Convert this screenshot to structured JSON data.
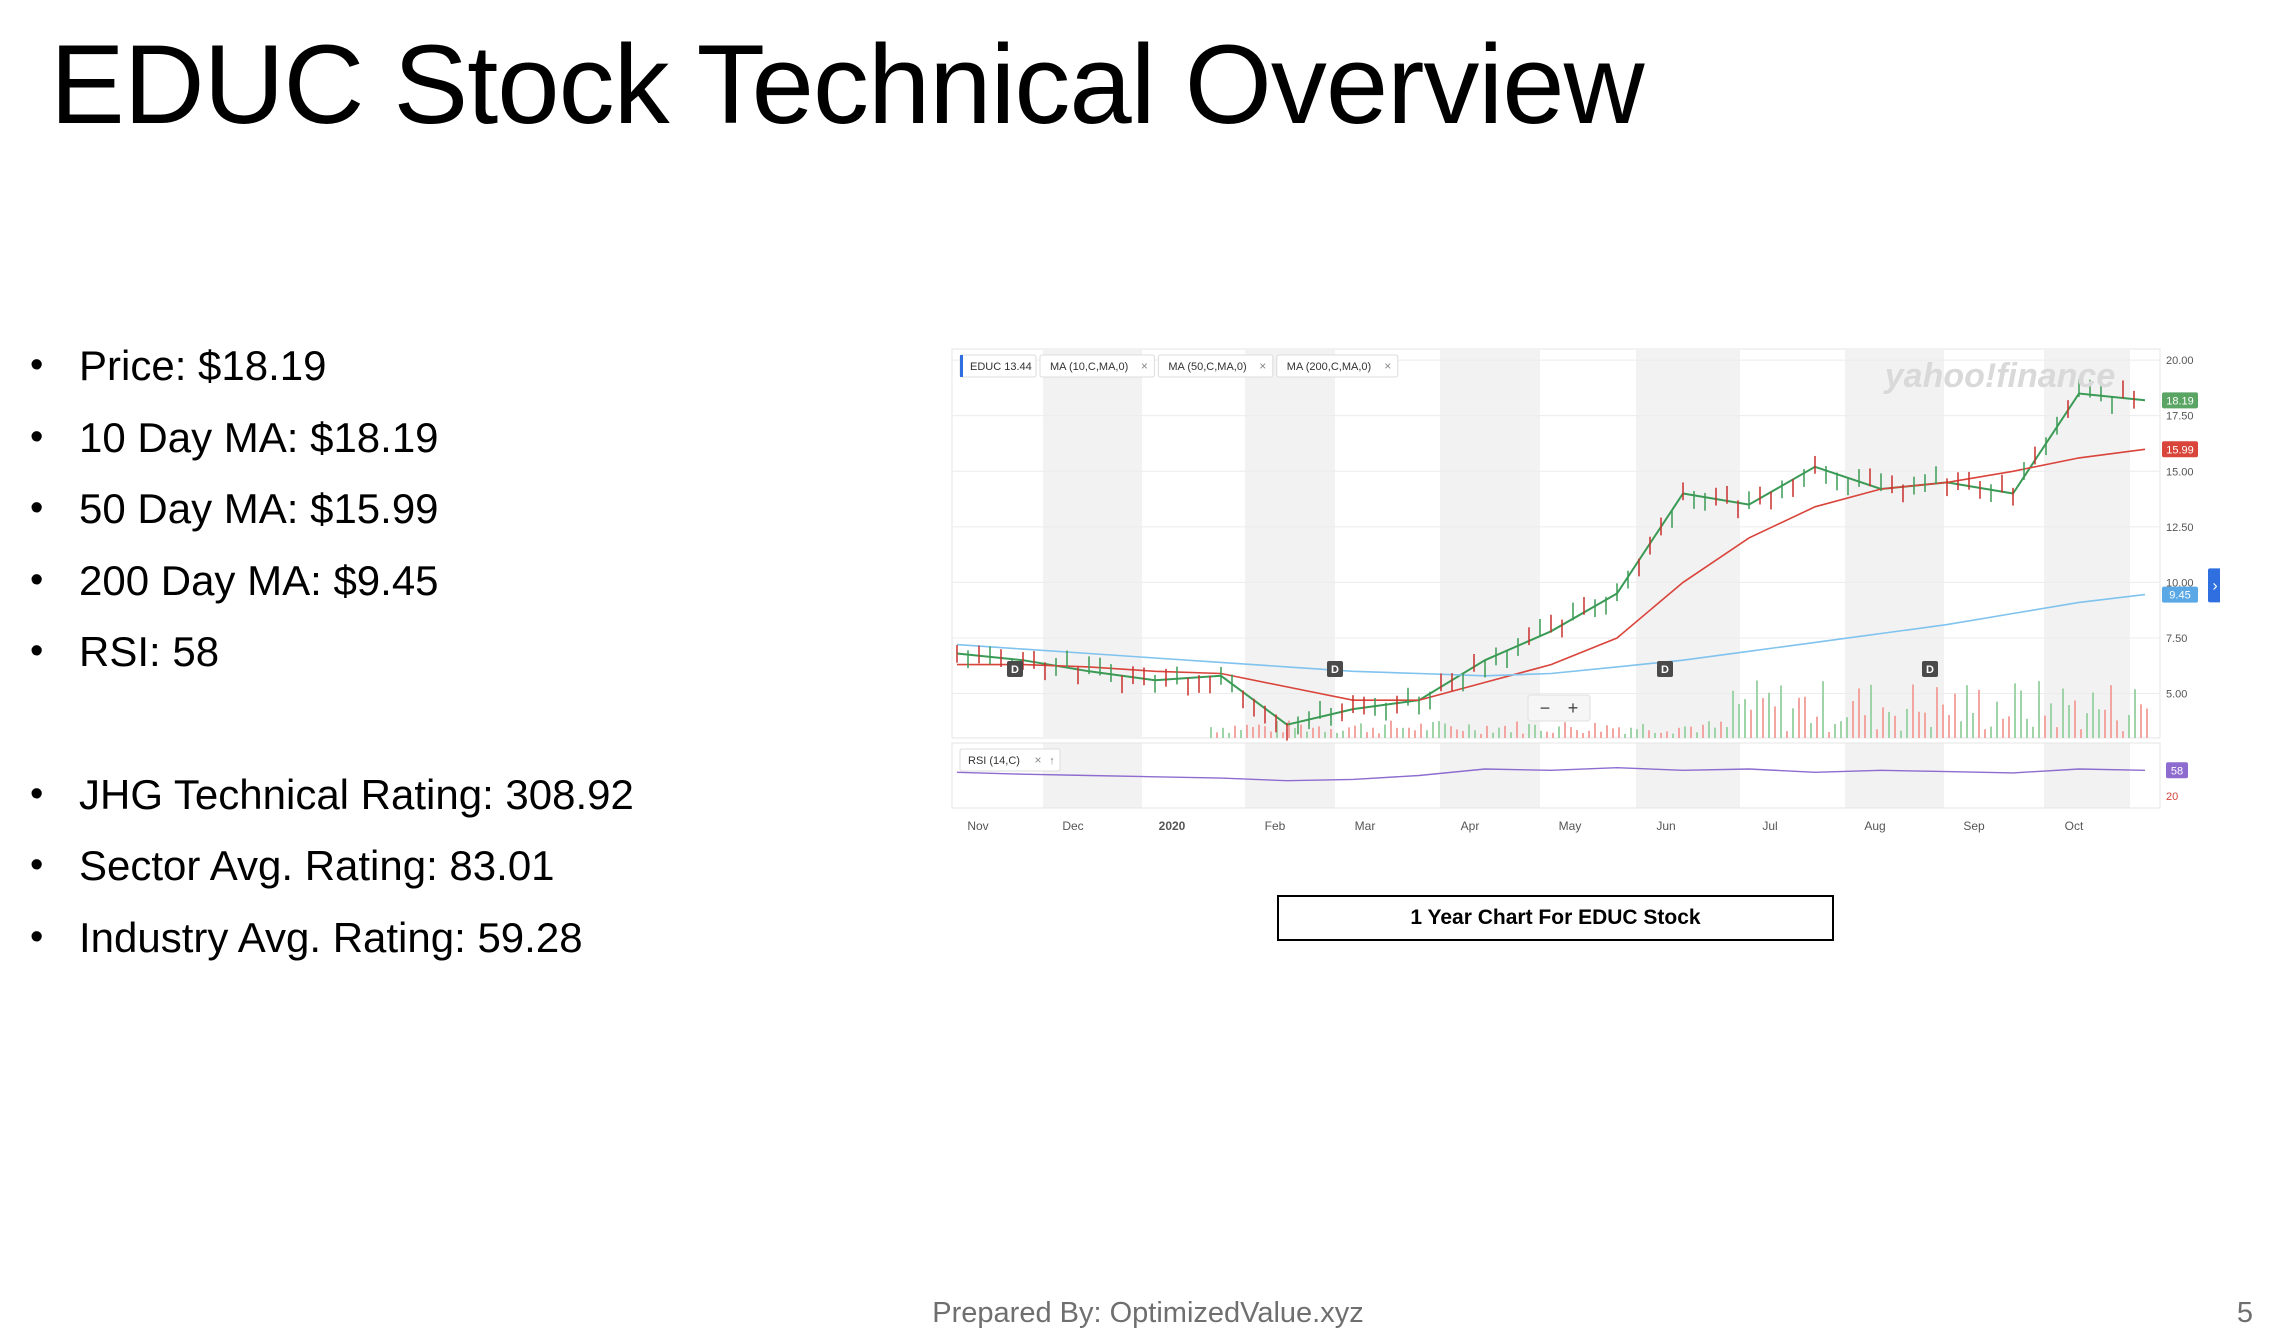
{
  "slide": {
    "title": "EDUC Stock Technical Overview",
    "bullets_group1": [
      "Price: $18.19",
      "10 Day MA: $18.19",
      "50 Day MA: $15.99",
      "200 Day MA: $9.45",
      "RSI: 58"
    ],
    "bullets_group2": [
      "JHG Technical Rating: 308.92",
      "Sector Avg. Rating: 83.01",
      "Industry Avg. Rating: 59.28"
    ],
    "chart_caption": "1 Year Chart For EDUC Stock",
    "footer": "Prepared By: OptimizedValue.xyz",
    "page_number": "5"
  },
  "chart_data": {
    "type": "line",
    "source_watermark": "yahoo!finance",
    "legend_chips": [
      "EDUC 13.44",
      "MA (10,C,MA,0)",
      "MA (50,C,MA,0)",
      "MA (200,C,MA,0)"
    ],
    "rsi_chip": "RSI (14,C)",
    "ylim": [
      3,
      20.5
    ],
    "yticks": [
      "20.00",
      "17.50",
      "15.00",
      "12.50",
      "10.00",
      "7.50",
      "5.00"
    ],
    "rsi_ticks": [
      "20"
    ],
    "xlabels": [
      "Nov",
      "Dec",
      "2020",
      "Feb",
      "Mar",
      "Apr",
      "May",
      "Jun",
      "Jul",
      "Aug",
      "Sep",
      "Oct"
    ],
    "price_flags": [
      {
        "label": "18.19",
        "value": 18.19,
        "color": "#5aa564"
      },
      {
        "label": "15.99",
        "value": 15.99,
        "color": "#d9443b"
      },
      {
        "label": "9.45",
        "value": 9.45,
        "color": "#5aa9e6"
      }
    ],
    "rsi_flag": {
      "label": "58",
      "value": 58,
      "color": "#8e6ccf"
    },
    "dividend_marker": "D",
    "dividend_months": [
      "Nov",
      "Mar",
      "Jun",
      "Sep"
    ],
    "zoom_minus": "−",
    "zoom_plus": "+",
    "series": [
      {
        "name": "EDUC",
        "color": "#3a9a55",
        "x": [
          "Nov",
          "Dec",
          "2020",
          "Feb",
          "Mar",
          "Mar-mid",
          "Apr",
          "May",
          "Jun",
          "Jun-mid",
          "Jul",
          "Jul-mid",
          "Aug",
          "Aug-mid",
          "Sep",
          "Sep-mid",
          "Oct",
          "Oct-mid",
          "Oct-end"
        ],
        "values": [
          6.8,
          6.5,
          6.0,
          5.6,
          5.8,
          3.6,
          4.3,
          4.7,
          6.5,
          7.8,
          9.5,
          14.0,
          13.5,
          15.2,
          14.2,
          14.5,
          14.0,
          18.5,
          18.19
        ]
      },
      {
        "name": "MA (50,C,MA,0)",
        "color": "#d9443b",
        "values": [
          6.3,
          6.3,
          6.2,
          6.0,
          5.9,
          5.3,
          4.7,
          4.7,
          5.5,
          6.3,
          7.5,
          10.0,
          12.0,
          13.4,
          14.2,
          14.5,
          15.0,
          15.6,
          15.99
        ]
      },
      {
        "name": "MA (200,C,MA,0)",
        "color": "#7fc3ee",
        "values": [
          7.2,
          7.0,
          6.8,
          6.6,
          6.4,
          6.2,
          6.0,
          5.9,
          5.8,
          5.9,
          6.2,
          6.5,
          6.9,
          7.3,
          7.7,
          8.1,
          8.6,
          9.1,
          9.45
        ]
      }
    ],
    "rsi_values": [
      55,
      52,
      50,
      48,
      46,
      42,
      44,
      50,
      60,
      58,
      62,
      58,
      60,
      55,
      58,
      56,
      54,
      60,
      58
    ]
  }
}
